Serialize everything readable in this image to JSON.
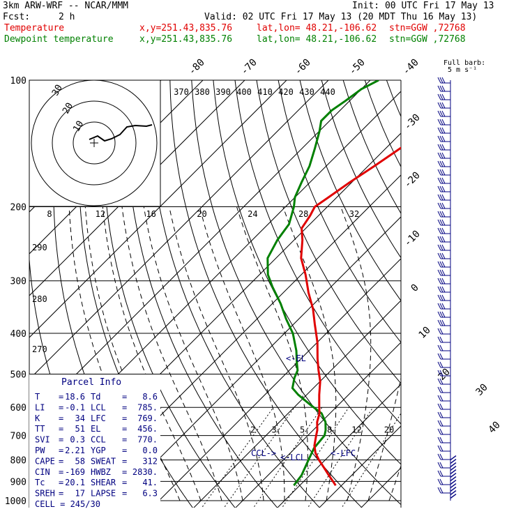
{
  "header": {
    "line1_left": "3km ARW-WRF -- NCAR/MMM",
    "line1_right": "Init: 00 UTC Fri 17 May 13",
    "fcst_label": "Fcst:",
    "fcst_value": "2 h",
    "valid": "Valid: 02 UTC Fri 17 May 13 (20 MDT Thu 16 May 13)",
    "temp_label": "Temperature",
    "dew_label": "Dewpoint temperature",
    "xy": "x,y=251.43,835.76",
    "latlon": "lat,lon= 48.21,-106.62",
    "stn": "stn=GGW ,72768"
  },
  "colors": {
    "temperature": "#e00000",
    "dewpoint": "#008000",
    "wind": "#000080",
    "text": "#000000"
  },
  "chart_data": {
    "type": "line",
    "chart_kind": "skew-T log-p",
    "y_scale": "log",
    "ylim": [
      1000,
      100
    ],
    "pressure_ticks": [
      100,
      200,
      300,
      400,
      500,
      600,
      700,
      800,
      900,
      1000
    ],
    "isotherm_labels": [
      "-80",
      "-70",
      "-60",
      "-50",
      "-40",
      "-30",
      "-20",
      "-10",
      "0",
      "10",
      "20",
      "30",
      "40"
    ],
    "theta_labels": [
      "290",
      "280",
      "270"
    ],
    "theta_e_labels": [
      "370",
      "380",
      "390",
      "400",
      "410",
      "420",
      "430",
      "440"
    ],
    "mixing_ratio_labels": [
      "2",
      "3",
      "5",
      "8",
      "12",
      "20"
    ],
    "series": [
      {
        "name": "Temperature",
        "p": [
          920,
          900,
          870,
          840,
          800,
          770,
          740,
          700,
          680,
          650,
          620,
          600,
          560,
          520,
          490,
          460,
          420,
          380,
          350,
          320,
          290,
          265,
          240,
          225,
          210,
          205,
          200,
          190,
          175,
          160,
          145,
          130,
          120,
          110,
          102
        ],
        "t": [
          18.6,
          17,
          14.5,
          12,
          8.5,
          6,
          4,
          2,
          1,
          -1,
          -2.5,
          -4,
          -7,
          -10,
          -13,
          -16,
          -20,
          -25,
          -29,
          -34,
          -39,
          -44,
          -48,
          -51,
          -52,
          -52.5,
          -53,
          -52,
          -50.5,
          -48.5,
          -46.5,
          -45,
          -44.5,
          -44,
          -42
        ]
      },
      {
        "name": "Dewpoint temperature",
        "p": [
          920,
          870,
          800,
          750,
          700,
          680,
          650,
          620,
          590,
          560,
          540,
          510,
          490,
          470,
          440,
          400,
          370,
          340,
          310,
          290,
          265,
          240,
          220,
          200,
          190,
          175,
          160,
          145,
          132,
          125,
          118,
          112,
          105,
          100
        ],
        "t": [
          8.6,
          8,
          6,
          4.5,
          4,
          3,
          1,
          -2,
          -7,
          -12,
          -15,
          -17,
          -18,
          -20,
          -23,
          -28,
          -33,
          -38,
          -44,
          -48,
          -52,
          -54,
          -55,
          -58,
          -60,
          -62,
          -64,
          -67,
          -70,
          -72,
          -72,
          -71,
          -70,
          -68
        ]
      }
    ],
    "annotations": [
      "Full barb: 5 m s⁻¹",
      "kts",
      "<-EL",
      "<-LCL",
      "CCL->",
      "<-LFC"
    ],
    "hodograph": {
      "ring_labels": [
        "30",
        "20",
        "10"
      ],
      "scale_ticks": [
        "8",
        "12",
        "16",
        "20",
        "24",
        "28",
        "32"
      ]
    },
    "parcel_info": {
      "title": "Parcel Info",
      "rows": [
        {
          "l": "T",
          "lv": "18.6",
          "r": "Td",
          "rv": "8.6"
        },
        {
          "l": "LI",
          "lv": "-0.1",
          "r": "LCL",
          "rv": "785."
        },
        {
          "l": "K",
          "lv": "34",
          "r": "LFC",
          "rv": "769."
        },
        {
          "l": "TT",
          "lv": "51",
          "r": "EL",
          "rv": "456."
        },
        {
          "l": "SVI",
          "lv": "0.3",
          "r": "CCL",
          "rv": "770."
        },
        {
          "l": "PW",
          "lv": "2.21",
          "r": "YGP",
          "rv": "0.0"
        },
        {
          "l": "CAPE",
          "lv": "58",
          "r": "SWEAT",
          "rv": "312"
        },
        {
          "l": "CIN",
          "lv": "-169",
          "r": "HWBZ",
          "rv": "2830."
        },
        {
          "l": "Tc",
          "lv": "20.1",
          "r": "SHEAR",
          "rv": "41."
        },
        {
          "l": "SREH",
          "lv": "17",
          "r": "LAPSE",
          "rv": "6.3"
        }
      ],
      "cell": "CELL = 245/30"
    }
  }
}
